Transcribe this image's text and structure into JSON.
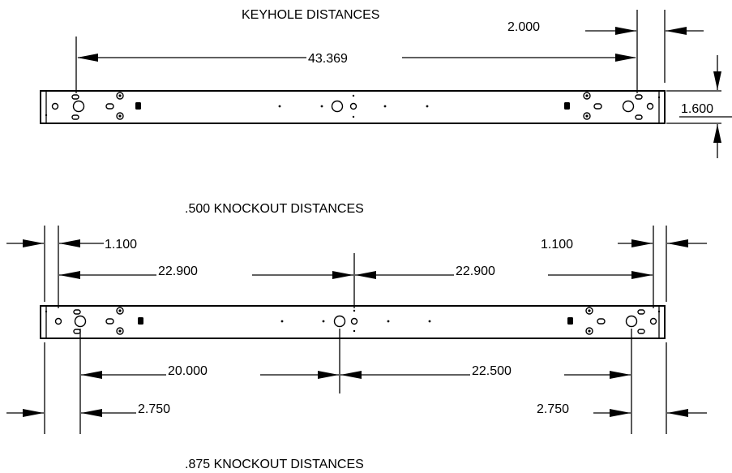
{
  "top_drawing": {
    "title": "KEYHOLE DISTANCES",
    "overall_dim": "43.369",
    "end_offset_dim": "2.000",
    "height_dim": "1.600"
  },
  "middle_drawing": {
    "title": ".500 KNOCKOUT DISTANCES",
    "left_edge_dim": "1.100",
    "right_edge_dim": "1.100",
    "left_span_dim": "22.900",
    "right_span_dim": "22.900"
  },
  "bottom_drawing": {
    "title": ".875 KNOCKOUT DISTANCES",
    "left_span_dim": "20.000",
    "right_span_dim": "22.500",
    "left_edge_dim": "2.750",
    "right_edge_dim": "2.750"
  }
}
